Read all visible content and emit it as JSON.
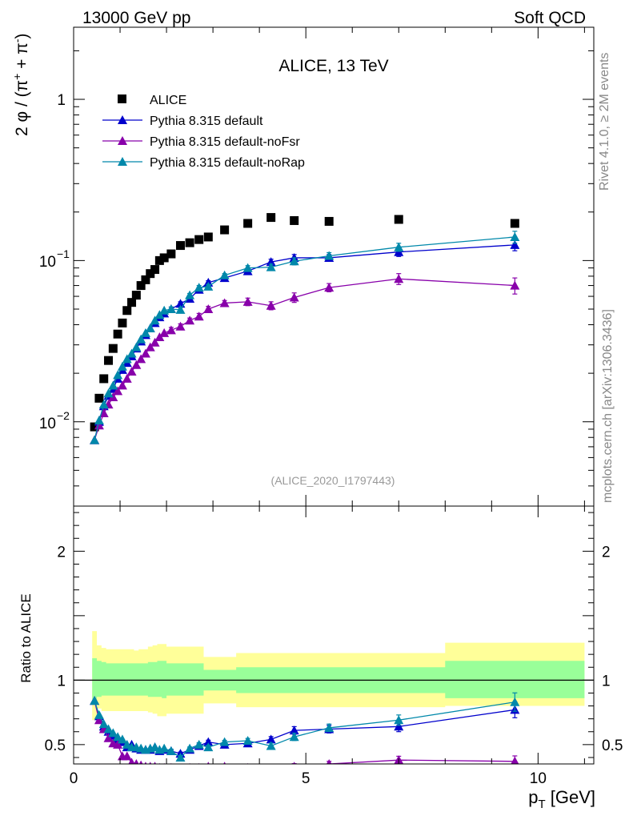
{
  "header": {
    "left": "13000 GeV pp",
    "right": "Soft QCD"
  },
  "side_text": {
    "rivet": "Rivet 4.1.0, ≥ 2M events",
    "mcplots": "mcplots.cern.ch [arXiv:1306.3436]"
  },
  "chart_data": [
    {
      "type": "scatter",
      "title": "ALICE, 13 TeV",
      "annotation": "(ALICE_2020_I1797443)",
      "ylabel": "2 φ / (π⁺ + π⁻)",
      "ylabel_parts": {
        "a": "2 φ / (π",
        "sup1": "+",
        "b": " + π",
        "sup2": "-",
        "c": ")"
      },
      "xlabel": "p_T [GeV]",
      "xlabel_parts": {
        "main": "p",
        "sub": "T",
        "unit": " [GeV]"
      },
      "xlim": [
        0,
        11.2
      ],
      "ylim_log": [
        0.003,
        2.8
      ],
      "ytick_labels": {
        "one": "1",
        "ten_minus_1_base": "10",
        "ten_minus_1_exp": "−1",
        "ten_minus_2_base": "10",
        "ten_minus_2_exp": "−2"
      },
      "legend_position": "top-left",
      "series": [
        {
          "name": "ALICE",
          "color": "#000000",
          "marker": "square",
          "x": [
            0.45,
            0.55,
            0.65,
            0.75,
            0.85,
            0.95,
            1.05,
            1.15,
            1.25,
            1.35,
            1.45,
            1.55,
            1.65,
            1.75,
            1.85,
            1.95,
            2.1,
            2.3,
            2.5,
            2.7,
            2.9,
            3.25,
            3.75,
            4.25,
            4.75,
            5.5,
            7.0,
            9.5
          ],
          "y": [
            0.0093,
            0.014,
            0.0185,
            0.024,
            0.0285,
            0.035,
            0.041,
            0.049,
            0.055,
            0.061,
            0.07,
            0.076,
            0.083,
            0.088,
            0.1,
            0.104,
            0.11,
            0.124,
            0.129,
            0.135,
            0.14,
            0.155,
            0.17,
            0.185,
            0.177,
            0.175,
            0.18,
            0.17
          ]
        },
        {
          "name": "Pythia 8.315 default",
          "color": "#0000cc",
          "marker": "triangle",
          "x": [
            0.45,
            0.55,
            0.65,
            0.75,
            0.85,
            0.95,
            1.05,
            1.15,
            1.25,
            1.35,
            1.45,
            1.55,
            1.65,
            1.75,
            1.85,
            1.95,
            2.1,
            2.3,
            2.5,
            2.7,
            2.9,
            3.25,
            3.75,
            4.25,
            4.75,
            5.5,
            7.0,
            9.5
          ],
          "y": [
            0.0077,
            0.01,
            0.0125,
            0.0145,
            0.016,
            0.0185,
            0.021,
            0.0232,
            0.0255,
            0.0285,
            0.0315,
            0.0345,
            0.038,
            0.041,
            0.0445,
            0.047,
            0.05,
            0.054,
            0.058,
            0.066,
            0.073,
            0.078,
            0.086,
            0.098,
            0.104,
            0.104,
            0.113,
            0.125
          ],
          "yerr": [
            0,
            0,
            0,
            0,
            0,
            0,
            0,
            0,
            0,
            0,
            0,
            0,
            0,
            0,
            0,
            0,
            0.0015,
            0.0015,
            0.0015,
            0.002,
            0.002,
            0.002,
            0.003,
            0.004,
            0.005,
            0.005,
            0.007,
            0.01
          ]
        },
        {
          "name": "Pythia 8.315 default-noFsr",
          "color": "#8800aa",
          "marker": "triangle",
          "x": [
            0.45,
            0.55,
            0.65,
            0.75,
            0.85,
            0.95,
            1.05,
            1.15,
            1.25,
            1.35,
            1.45,
            1.55,
            1.65,
            1.75,
            1.85,
            1.95,
            2.1,
            2.3,
            2.5,
            2.7,
            2.9,
            3.25,
            3.75,
            4.25,
            4.75,
            5.5,
            7.0,
            9.5
          ],
          "y": [
            0.0077,
            0.0095,
            0.0113,
            0.0128,
            0.0142,
            0.0155,
            0.0168,
            0.0185,
            0.0205,
            0.0225,
            0.0245,
            0.0265,
            0.029,
            0.031,
            0.0335,
            0.0355,
            0.037,
            0.039,
            0.0425,
            0.045,
            0.05,
            0.0545,
            0.0555,
            0.0525,
            0.059,
            0.068,
            0.077,
            0.07
          ],
          "yerr": [
            0,
            0,
            0,
            0,
            0,
            0,
            0,
            0,
            0,
            0,
            0,
            0,
            0,
            0,
            0,
            0,
            0.0015,
            0.0015,
            0.0015,
            0.002,
            0.002,
            0.002,
            0.003,
            0.003,
            0.004,
            0.004,
            0.006,
            0.008
          ]
        },
        {
          "name": "Pythia 8.315 default-noRap",
          "color": "#0088aa",
          "marker": "triangle",
          "x": [
            0.45,
            0.55,
            0.65,
            0.75,
            0.85,
            0.95,
            1.05,
            1.15,
            1.25,
            1.35,
            1.45,
            1.55,
            1.65,
            1.75,
            1.85,
            1.95,
            2.1,
            2.3,
            2.5,
            2.7,
            2.9,
            3.25,
            3.75,
            4.25,
            4.75,
            5.5,
            7.0,
            9.5
          ],
          "y": [
            0.0077,
            0.0102,
            0.0128,
            0.015,
            0.0168,
            0.0195,
            0.022,
            0.0245,
            0.0265,
            0.029,
            0.0325,
            0.0355,
            0.038,
            0.0425,
            0.046,
            0.049,
            0.05,
            0.0495,
            0.061,
            0.068,
            0.069,
            0.081,
            0.09,
            0.091,
            0.099,
            0.107,
            0.121,
            0.14
          ],
          "yerr": [
            0,
            0,
            0,
            0,
            0,
            0,
            0,
            0,
            0,
            0,
            0,
            0,
            0,
            0,
            0,
            0,
            0.0015,
            0.0015,
            0.0015,
            0.002,
            0.002,
            0.002,
            0.003,
            0.004,
            0.005,
            0.005,
            0.007,
            0.012
          ]
        }
      ]
    },
    {
      "type": "scatter",
      "title": "",
      "ylabel": "Ratio to ALICE",
      "xlabel": "p_T [GeV]",
      "xlim": [
        0,
        11.2
      ],
      "ylim": [
        0.35,
        2.35
      ],
      "xticks": [
        0,
        5,
        10
      ],
      "xtick_labels": [
        "0",
        "5",
        "10"
      ],
      "yticks": [
        0.5,
        1,
        2
      ],
      "ytick_labels": [
        "0.5",
        "1",
        "2"
      ],
      "reference_line": 1,
      "bands": {
        "edges": [
          0.4,
          0.5,
          0.6,
          0.7,
          0.8,
          0.9,
          1.0,
          1.1,
          1.2,
          1.3,
          1.4,
          1.5,
          1.6,
          1.7,
          1.8,
          1.9,
          2.0,
          2.2,
          2.4,
          2.6,
          2.8,
          3.0,
          3.5,
          4.0,
          4.5,
          5.0,
          6.0,
          8.0,
          11.0
        ],
        "inner_color": "#99ff99",
        "outer_color": "#ffff99",
        "inner_up": [
          1.17,
          1.15,
          1.14,
          1.13,
          1.13,
          1.13,
          1.13,
          1.13,
          1.13,
          1.13,
          1.13,
          1.13,
          1.14,
          1.14,
          1.15,
          1.15,
          1.13,
          1.13,
          1.13,
          1.13,
          1.08,
          1.08,
          1.1,
          1.1,
          1.1,
          1.1,
          1.1,
          1.15
        ],
        "inner_down": [
          0.85,
          0.87,
          0.88,
          0.88,
          0.88,
          0.88,
          0.88,
          0.88,
          0.88,
          0.88,
          0.88,
          0.88,
          0.87,
          0.87,
          0.87,
          0.86,
          0.88,
          0.88,
          0.88,
          0.88,
          0.92,
          0.92,
          0.9,
          0.9,
          0.9,
          0.9,
          0.9,
          0.86
        ],
        "outer_up": [
          1.38,
          1.27,
          1.25,
          1.24,
          1.24,
          1.24,
          1.24,
          1.24,
          1.24,
          1.23,
          1.24,
          1.24,
          1.26,
          1.27,
          1.28,
          1.28,
          1.26,
          1.26,
          1.26,
          1.26,
          1.18,
          1.18,
          1.21,
          1.21,
          1.21,
          1.21,
          1.21,
          1.29
        ],
        "outer_down": [
          0.69,
          0.78,
          0.76,
          0.76,
          0.76,
          0.76,
          0.76,
          0.76,
          0.76,
          0.76,
          0.76,
          0.76,
          0.75,
          0.74,
          0.72,
          0.72,
          0.74,
          0.74,
          0.74,
          0.74,
          0.82,
          0.82,
          0.79,
          0.79,
          0.79,
          0.79,
          0.79,
          0.8
        ]
      },
      "series": [
        {
          "name": "Pythia 8.315 default",
          "color": "#0000cc",
          "x": [
            0.45,
            0.55,
            0.65,
            0.75,
            0.85,
            0.95,
            1.05,
            1.15,
            1.25,
            1.35,
            1.45,
            1.55,
            1.65,
            1.75,
            1.85,
            1.95,
            2.1,
            2.3,
            2.5,
            2.7,
            2.9,
            3.25,
            3.75,
            4.25,
            4.75,
            5.5,
            7.0,
            9.5
          ],
          "y": [
            0.84,
            0.72,
            0.64,
            0.6,
            0.57,
            0.54,
            0.52,
            0.48,
            0.5,
            0.47,
            0.46,
            0.46,
            0.46,
            0.48,
            0.45,
            0.46,
            0.45,
            0.43,
            0.46,
            0.49,
            0.52,
            0.5,
            0.51,
            0.54,
            0.61,
            0.62,
            0.64,
            0.77
          ]
        },
        {
          "name": "Pythia 8.315 default-noFsr",
          "color": "#8800aa",
          "x": [
            0.45,
            0.55,
            0.65,
            0.75,
            0.85,
            0.95,
            1.05,
            1.15,
            1.25,
            1.35,
            1.45,
            1.55,
            1.65,
            1.75,
            1.85,
            1.95,
            2.1,
            2.3,
            2.5,
            2.7,
            2.9,
            3.25,
            3.75,
            4.25,
            4.75,
            5.5,
            7.0,
            9.5
          ],
          "y": [
            0.84,
            0.69,
            0.62,
            0.55,
            0.51,
            0.5,
            0.41,
            0.41,
            0.36,
            0.35,
            0.34,
            0.33,
            0.33,
            0.33,
            0.32,
            0.32,
            0.32,
            0.31,
            0.32,
            0.32,
            0.33,
            0.33,
            0.32,
            0.3,
            0.33,
            0.35,
            0.38,
            0.37
          ]
        },
        {
          "name": "Pythia 8.315 default-noRap",
          "color": "#0088aa",
          "x": [
            0.45,
            0.55,
            0.65,
            0.75,
            0.85,
            0.95,
            1.05,
            1.15,
            1.25,
            1.35,
            1.45,
            1.55,
            1.65,
            1.75,
            1.85,
            1.95,
            2.1,
            2.3,
            2.5,
            2.7,
            2.9,
            3.25,
            3.75,
            4.25,
            4.75,
            5.5,
            7.0,
            9.5
          ],
          "y": [
            0.84,
            0.73,
            0.66,
            0.62,
            0.59,
            0.56,
            0.54,
            0.5,
            0.48,
            0.48,
            0.47,
            0.46,
            0.47,
            0.48,
            0.46,
            0.47,
            0.45,
            0.4,
            0.47,
            0.5,
            0.48,
            0.52,
            0.53,
            0.49,
            0.56,
            0.63,
            0.69,
            0.83
          ]
        }
      ]
    }
  ]
}
